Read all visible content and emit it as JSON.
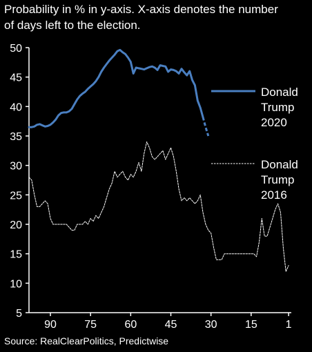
{
  "title_lines": [
    "Probability in % in y-axis. X-axis denotes the number",
    "of days left to the election."
  ],
  "source": "Source:  RealClearPolitics, Predictwise",
  "colors": {
    "background": "#000000",
    "text": "#ffffff",
    "series_2020": "#4a7fc1",
    "series_2016": "#ffffff",
    "axis": "#ffffff"
  },
  "chart_data": {
    "type": "line",
    "title": "Probability in % in y-axis. X-axis denotes the number of days left to the election.",
    "xlabel": "",
    "ylabel": "",
    "x_reversed": true,
    "xlim": [
      98,
      0
    ],
    "ylim": [
      5,
      50
    ],
    "xticks": [
      90,
      75,
      60,
      45,
      30,
      15,
      1
    ],
    "yticks": [
      5,
      10,
      15,
      20,
      25,
      30,
      35,
      40,
      45,
      50
    ],
    "grid": false,
    "legend": "right, inline labels",
    "series": [
      {
        "name": "Donald Trump 2020",
        "label_lines": [
          "Donald",
          "Trump",
          "2020"
        ],
        "style": "solid",
        "color": "#4a7fc1",
        "x": [
          98,
          97,
          96,
          95,
          94,
          93,
          92,
          91,
          90,
          89,
          88,
          87,
          86,
          85,
          84,
          83,
          82,
          81,
          80,
          79,
          78,
          77,
          76,
          75,
          74,
          73,
          72,
          71,
          70,
          69,
          68,
          67,
          66,
          65,
          64,
          63,
          62,
          61,
          60,
          59,
          58,
          57,
          56,
          55,
          54,
          53,
          52,
          51,
          50,
          49,
          48,
          47,
          46,
          45,
          44,
          43,
          42,
          41,
          40,
          39,
          38,
          37,
          36,
          35,
          34,
          33,
          32,
          31
        ],
        "y": [
          36.5,
          36.5,
          36.6,
          36.9,
          37.0,
          36.8,
          36.6,
          36.7,
          36.9,
          37.3,
          37.8,
          38.5,
          38.9,
          39.0,
          39.0,
          39.2,
          39.6,
          40.4,
          41.2,
          41.8,
          42.2,
          42.5,
          43.0,
          43.4,
          43.8,
          44.3,
          45.0,
          45.9,
          46.6,
          47.2,
          47.8,
          48.3,
          48.8,
          49.4,
          49.6,
          49.2,
          48.9,
          48.3,
          47.6,
          45.6,
          46.6,
          46.5,
          46.4,
          46.3,
          46.5,
          46.7,
          46.8,
          46.6,
          46.2,
          47.0,
          46.9,
          46.8,
          45.9,
          46.3,
          46.2,
          46.0,
          45.6,
          46.4,
          45.8,
          45.3,
          46.0,
          44.5,
          43.6,
          41.0,
          39.8,
          38.2,
          36.5,
          35.0
        ]
      },
      {
        "name": "Donald Trump 2016",
        "label_lines": [
          "Donald",
          "Trump",
          "2016"
        ],
        "style": "dashed",
        "color": "#ffffff",
        "x": [
          98,
          97,
          96,
          95,
          94,
          93,
          92,
          91,
          90,
          89,
          88,
          87,
          86,
          85,
          84,
          83,
          82,
          81,
          80,
          79,
          78,
          77,
          76,
          75,
          74,
          73,
          72,
          71,
          70,
          69,
          68,
          67,
          66,
          65,
          64,
          63,
          62,
          61,
          60,
          59,
          58,
          57,
          56,
          55,
          54,
          53,
          52,
          51,
          50,
          49,
          48,
          47,
          46,
          45,
          44,
          43,
          42,
          41,
          40,
          39,
          38,
          37,
          36,
          35,
          34,
          33,
          32,
          31,
          30,
          29,
          28,
          27,
          26,
          25,
          24,
          23,
          22,
          21,
          20,
          19,
          18,
          17,
          16,
          15,
          14,
          13,
          12,
          11,
          10,
          9,
          8,
          7,
          6,
          5,
          4,
          3,
          2,
          1
        ],
        "y": [
          28,
          27.5,
          25,
          23,
          23,
          23.5,
          24,
          23.5,
          21,
          20,
          20,
          20,
          20,
          20,
          20,
          19.5,
          19,
          19,
          20,
          20,
          20,
          20.5,
          20,
          21,
          20.5,
          21.5,
          21,
          22,
          23,
          24.5,
          26,
          27,
          29,
          28,
          28.5,
          29,
          28,
          27.5,
          28.5,
          28,
          29,
          30.5,
          29,
          32,
          34,
          33,
          31.5,
          31,
          31.5,
          32,
          32.5,
          31,
          32,
          33,
          31.5,
          29,
          26,
          24,
          24.5,
          24,
          24.5,
          24,
          23.5,
          24,
          25,
          22,
          20,
          19,
          18.5,
          16,
          14,
          14,
          14,
          15,
          15,
          15,
          15,
          15,
          15,
          15,
          15,
          15,
          15,
          15,
          15,
          14.5,
          17,
          21,
          18,
          18,
          19.5,
          21,
          22.5,
          23.5,
          22,
          16,
          12,
          13
        ]
      }
    ]
  }
}
